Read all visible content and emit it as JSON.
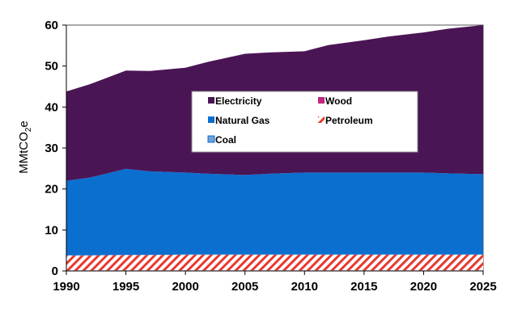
{
  "chart_data": {
    "type": "area",
    "stacked": true,
    "x": [
      1990,
      1992,
      1995,
      1997,
      2000,
      2002,
      2005,
      2007,
      2010,
      2012,
      2015,
      2017,
      2020,
      2022,
      2025
    ],
    "series": [
      {
        "name": "Coal",
        "color": "#6fa0d8",
        "values": [
          0.15,
          0.15,
          0.15,
          0.15,
          0.15,
          0.15,
          0.15,
          0.15,
          0.15,
          0.15,
          0.15,
          0.15,
          0.15,
          0.15,
          0.15
        ]
      },
      {
        "name": "Petroleum",
        "color": "#e8382e",
        "pattern": "diagonal-hatch",
        "values": [
          3.65,
          3.65,
          3.75,
          3.75,
          3.85,
          3.85,
          3.85,
          3.85,
          3.85,
          3.85,
          3.85,
          3.85,
          3.85,
          3.85,
          3.85
        ]
      },
      {
        "name": "Natural Gas",
        "color": "#0b6fd0",
        "values": [
          18.2,
          19.0,
          21.0,
          20.4,
          20.0,
          19.7,
          19.4,
          19.7,
          20.0,
          20.0,
          20.0,
          20.0,
          20.0,
          19.8,
          19.6
        ]
      },
      {
        "name": "Wood",
        "color": "#c0277e",
        "values": [
          0,
          0,
          0,
          0,
          0,
          0,
          0,
          0,
          0,
          0,
          0,
          0,
          0,
          0,
          0
        ]
      },
      {
        "name": "Electricity",
        "color": "#4a1555",
        "values": [
          21.8,
          22.8,
          24.0,
          24.5,
          25.6,
          27.4,
          29.6,
          29.6,
          29.6,
          31.1,
          32.3,
          33.2,
          34.2,
          35.3,
          36.4
        ]
      }
    ],
    "xticks": [
      "1990",
      "1995",
      "2000",
      "2005",
      "2010",
      "2015",
      "2020",
      "2025"
    ],
    "yticks": [
      "0",
      "10",
      "20",
      "30",
      "40",
      "50",
      "60"
    ],
    "xlim": [
      1990,
      2025
    ],
    "ylim": [
      0,
      60
    ],
    "ylabel": "MMtCO",
    "ylabel_sub": "2",
    "ylabel_suffix": "e",
    "legend": {
      "placement": "center",
      "entries": [
        "Electricity",
        "Wood",
        "Natural Gas",
        "Petroleum",
        "Coal"
      ]
    },
    "grid": false
  }
}
